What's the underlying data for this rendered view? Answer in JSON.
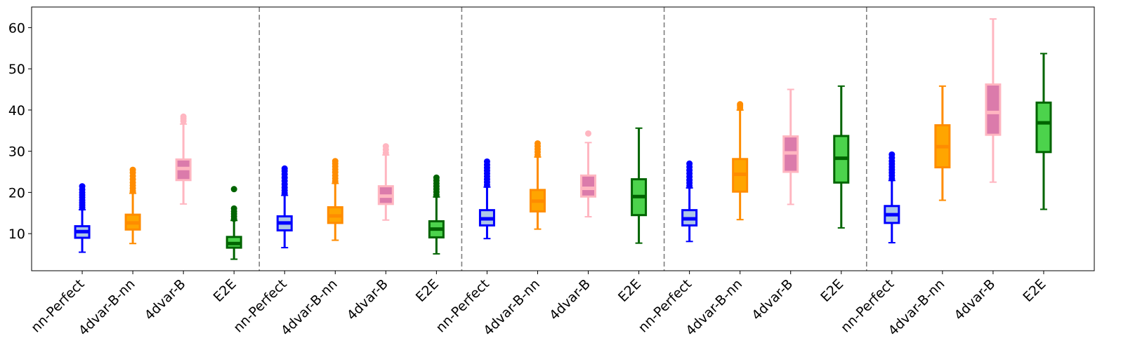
{
  "chart_data": {
    "type": "box",
    "title": "",
    "xlabel": "",
    "ylabel": "",
    "ylim": [
      1,
      65
    ],
    "yticks": [
      10,
      20,
      30,
      40,
      50,
      60
    ],
    "grid": false,
    "method_styles": [
      {
        "name": "nn-Perfect",
        "face": "#aec7e8",
        "edge": "#0000ff",
        "median": "#0000ff"
      },
      {
        "name": "4dvar-B-nn",
        "face": "#ffa500",
        "edge": "#ff8c00",
        "median": "#ff8c00"
      },
      {
        "name": "4dvar-B",
        "face": "#db7bab",
        "edge": "#ffb6c1",
        "median": "#ffb6c1"
      },
      {
        "name": "E2E",
        "face": "#4cd34c",
        "edge": "#006400",
        "median": "#006400"
      }
    ],
    "groups": [
      {
        "boxes": [
          {
            "category": "nn-Perfect",
            "whislo": 5.5,
            "q1": 9.0,
            "med": 10.5,
            "q3": 11.8,
            "whishi": 15.8,
            "fliers": [
              16.3,
              16.9,
              17.5,
              18.1,
              18.8,
              19.4,
              20.0,
              20.7,
              21.5
            ]
          },
          {
            "category": "4dvar-B-nn",
            "whislo": 7.6,
            "q1": 11.0,
            "med": 12.6,
            "q3": 14.6,
            "whishi": 19.8,
            "fliers": [
              20.3,
              21.0,
              21.7,
              22.4,
              23.2,
              24.0,
              24.8,
              25.5
            ]
          },
          {
            "category": "4dvar-B",
            "whislo": 17.2,
            "q1": 23.0,
            "med": 25.8,
            "q3": 28.0,
            "whishi": 36.6,
            "fliers": [
              37.3,
              37.9,
              38.4
            ]
          },
          {
            "category": "E2E",
            "whislo": 3.8,
            "q1": 6.6,
            "med": 7.6,
            "q3": 9.2,
            "whishi": 13.2,
            "fliers": [
              13.6,
              14.2,
              14.8,
              15.4,
              16.1,
              20.8
            ]
          }
        ]
      },
      {
        "boxes": [
          {
            "category": "nn-Perfect",
            "whislo": 6.6,
            "q1": 10.8,
            "med": 12.6,
            "q3": 14.2,
            "whishi": 19.3,
            "fliers": [
              19.8,
              20.5,
              21.2,
              22.0,
              22.8,
              23.6,
              24.4,
              25.2,
              25.8
            ]
          },
          {
            "category": "4dvar-B-nn",
            "whislo": 8.4,
            "q1": 12.6,
            "med": 14.3,
            "q3": 16.4,
            "whishi": 22.2,
            "fliers": [
              22.7,
              23.4,
              24.1,
              24.9,
              25.6,
              26.3,
              27.0,
              27.6
            ]
          },
          {
            "category": "4dvar-B",
            "whislo": 13.3,
            "q1": 17.2,
            "med": 19.1,
            "q3": 21.5,
            "whishi": 29.1,
            "fliers": [
              29.6,
              30.4,
              31.2
            ]
          },
          {
            "category": "E2E",
            "whislo": 5.1,
            "q1": 9.1,
            "med": 11.1,
            "q3": 13.0,
            "whishi": 18.9,
            "fliers": [
              19.4,
              20.1,
              20.8,
              21.5,
              22.2,
              22.9,
              23.6
            ]
          }
        ]
      },
      {
        "boxes": [
          {
            "category": "nn-Perfect",
            "whislo": 8.8,
            "q1": 12.0,
            "med": 13.6,
            "q3": 15.7,
            "whishi": 21.3,
            "fliers": [
              21.8,
              22.5,
              23.2,
              23.9,
              24.6,
              25.3,
              26.0,
              26.7,
              27.5
            ]
          },
          {
            "category": "4dvar-B-nn",
            "whislo": 11.1,
            "q1": 15.4,
            "med": 17.9,
            "q3": 20.6,
            "whishi": 28.6,
            "fliers": [
              29.1,
              29.8,
              30.5,
              31.2,
              31.9
            ]
          },
          {
            "category": "4dvar-B",
            "whislo": 14.1,
            "q1": 19.0,
            "med": 21.0,
            "q3": 24.1,
            "whishi": 32.1,
            "fliers": [
              34.3
            ]
          },
          {
            "category": "E2E",
            "whislo": 7.7,
            "q1": 14.5,
            "med": 19.0,
            "q3": 23.2,
            "whishi": 35.6,
            "fliers": []
          }
        ]
      },
      {
        "boxes": [
          {
            "category": "nn-Perfect",
            "whislo": 8.1,
            "q1": 12.0,
            "med": 13.6,
            "q3": 15.7,
            "whishi": 21.1,
            "fliers": [
              21.6,
              22.3,
              23.0,
              23.8,
              24.6,
              25.4,
              26.2,
              27.0
            ]
          },
          {
            "category": "4dvar-B-nn",
            "whislo": 13.4,
            "q1": 20.2,
            "med": 24.4,
            "q3": 28.1,
            "whishi": 40.0,
            "fliers": [
              40.5,
              41.0,
              41.4
            ]
          },
          {
            "category": "4dvar-B",
            "whislo": 17.1,
            "q1": 25.0,
            "med": 29.6,
            "q3": 33.6,
            "whishi": 45.0,
            "fliers": []
          },
          {
            "category": "E2E",
            "whislo": 11.4,
            "q1": 22.4,
            "med": 28.3,
            "q3": 33.7,
            "whishi": 45.8,
            "fliers": []
          }
        ]
      },
      {
        "boxes": [
          {
            "category": "nn-Perfect",
            "whislo": 7.8,
            "q1": 12.6,
            "med": 14.6,
            "q3": 16.7,
            "whishi": 22.9,
            "fliers": [
              23.4,
              24.1,
              24.8,
              25.5,
              26.2,
              26.9,
              27.6,
              28.4,
              29.2
            ]
          },
          {
            "category": "4dvar-B-nn",
            "whislo": 18.1,
            "q1": 26.1,
            "med": 31.1,
            "q3": 36.3,
            "whishi": 45.8,
            "fliers": []
          },
          {
            "category": "4dvar-B",
            "whislo": 22.5,
            "q1": 34.0,
            "med": 39.4,
            "q3": 46.2,
            "whishi": 62.1,
            "fliers": []
          },
          {
            "category": "E2E",
            "whislo": 15.9,
            "q1": 29.8,
            "med": 36.9,
            "q3": 41.8,
            "whishi": 53.7,
            "fliers": []
          }
        ]
      }
    ]
  }
}
